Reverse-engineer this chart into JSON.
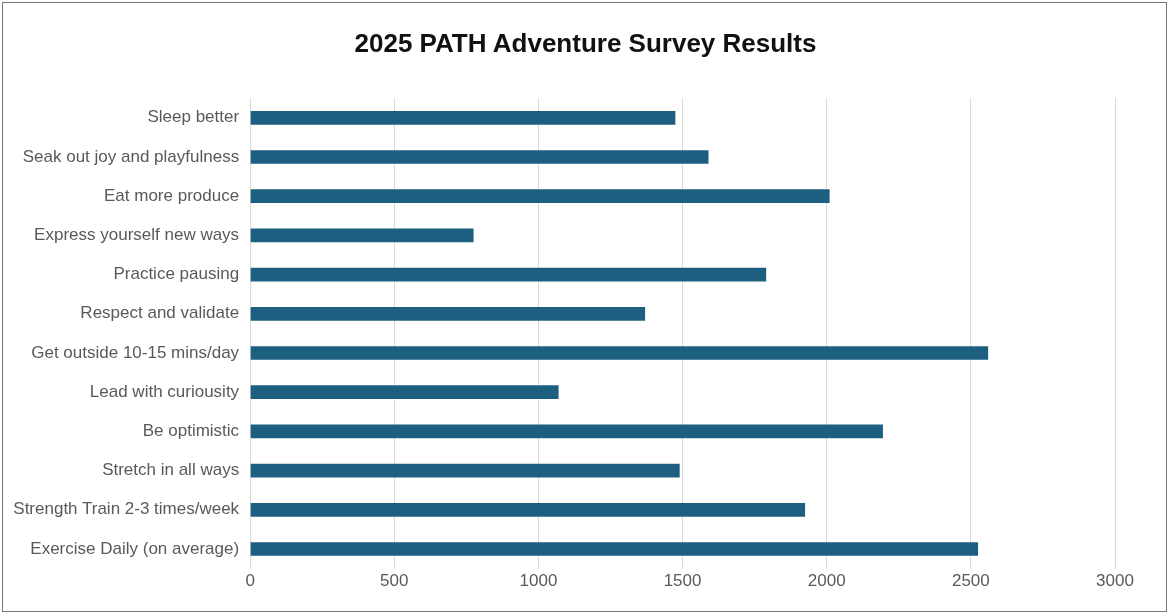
{
  "chart_data": {
    "type": "bar",
    "orientation": "horizontal",
    "title": "2025 PATH Adventure Survey Results",
    "categories": [
      "Sleep better",
      "Seak out joy and playfulness",
      "Eat more produce",
      "Express yourself new ways",
      "Practice pausing",
      "Respect and validate",
      "Get outside 10-15 mins/day",
      "Lead with curiousity",
      "Be optimistic",
      "Stretch in all ways",
      "Strength Train 2-3 times/week",
      "Exercise Daily (on average)"
    ],
    "values": [
      1475,
      1590,
      2010,
      775,
      1790,
      1370,
      2560,
      1070,
      2195,
      1490,
      1925,
      2525
    ],
    "color": "#1d5f80",
    "xlim": [
      0,
      3000
    ],
    "xticks": [
      0,
      500,
      1000,
      1500,
      2000,
      2500,
      3000
    ],
    "grid": "x",
    "legend": false
  }
}
